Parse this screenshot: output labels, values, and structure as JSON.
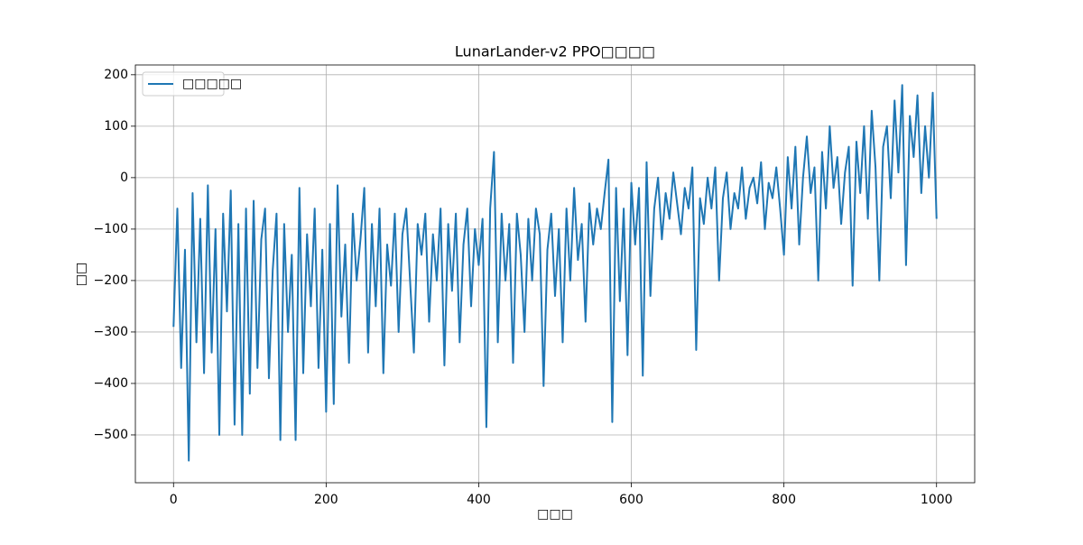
{
  "chart_data": {
    "type": "line",
    "title": "LunarLander-v2 PPO□□□□",
    "xlabel": "□□□",
    "ylabel": "□□",
    "x": [
      0,
      5,
      10,
      15,
      20,
      25,
      30,
      35,
      40,
      45,
      50,
      55,
      60,
      65,
      70,
      75,
      80,
      85,
      90,
      95,
      100,
      105,
      110,
      115,
      120,
      125,
      130,
      135,
      140,
      145,
      150,
      155,
      160,
      165,
      170,
      175,
      180,
      185,
      190,
      195,
      200,
      205,
      210,
      215,
      220,
      225,
      230,
      235,
      240,
      245,
      250,
      255,
      260,
      265,
      270,
      275,
      280,
      285,
      290,
      295,
      300,
      305,
      310,
      315,
      320,
      325,
      330,
      335,
      340,
      345,
      350,
      355,
      360,
      365,
      370,
      375,
      380,
      385,
      390,
      395,
      400,
      405,
      410,
      415,
      420,
      425,
      430,
      435,
      440,
      445,
      450,
      455,
      460,
      465,
      470,
      475,
      480,
      485,
      490,
      495,
      500,
      505,
      510,
      515,
      520,
      525,
      530,
      535,
      540,
      545,
      550,
      555,
      560,
      565,
      570,
      575,
      580,
      585,
      590,
      595,
      600,
      605,
      610,
      615,
      620,
      625,
      630,
      635,
      640,
      645,
      650,
      655,
      660,
      665,
      670,
      675,
      680,
      685,
      690,
      695,
      700,
      705,
      710,
      715,
      720,
      725,
      730,
      735,
      740,
      745,
      750,
      755,
      760,
      765,
      770,
      775,
      780,
      785,
      790,
      795,
      800,
      805,
      810,
      815,
      820,
      825,
      830,
      835,
      840,
      845,
      850,
      855,
      860,
      865,
      870,
      875,
      880,
      885,
      890,
      895,
      900,
      905,
      910,
      915,
      920,
      925,
      930,
      935,
      940,
      945,
      950,
      955,
      960,
      965,
      970,
      975,
      980,
      985,
      990,
      995,
      1000
    ],
    "series": [
      {
        "name": "□□□□□",
        "color": "#1f77b4",
        "values": [
          -290,
          -60,
          -370,
          -140,
          -550,
          -30,
          -320,
          -80,
          -380,
          -15,
          -340,
          -100,
          -500,
          -70,
          -260,
          -25,
          -480,
          -90,
          -500,
          -60,
          -420,
          -45,
          -370,
          -120,
          -60,
          -390,
          -180,
          -70,
          -510,
          -90,
          -300,
          -150,
          -510,
          -20,
          -380,
          -110,
          -250,
          -60,
          -370,
          -140,
          -455,
          -90,
          -440,
          -15,
          -270,
          -130,
          -360,
          -70,
          -200,
          -120,
          -20,
          -340,
          -90,
          -250,
          -60,
          -380,
          -130,
          -210,
          -70,
          -300,
          -110,
          -60,
          -200,
          -340,
          -90,
          -150,
          -70,
          -280,
          -110,
          -200,
          -60,
          -365,
          -90,
          -220,
          -70,
          -320,
          -130,
          -60,
          -250,
          -100,
          -170,
          -80,
          -485,
          -60,
          50,
          -320,
          -70,
          -200,
          -90,
          -360,
          -70,
          -150,
          -300,
          -80,
          -200,
          -60,
          -110,
          -405,
          -140,
          -70,
          -230,
          -100,
          -320,
          -60,
          -200,
          -20,
          -160,
          -90,
          -280,
          -50,
          -130,
          -60,
          -100,
          -30,
          35,
          -475,
          -20,
          -240,
          -60,
          -345,
          -10,
          -130,
          -20,
          -385,
          30,
          -230,
          -60,
          0,
          -120,
          -30,
          -80,
          10,
          -50,
          -110,
          -20,
          -60,
          20,
          -335,
          -40,
          -90,
          0,
          -60,
          20,
          -200,
          -40,
          10,
          -100,
          -30,
          -60,
          20,
          -80,
          -20,
          0,
          -50,
          30,
          -100,
          -10,
          -40,
          20,
          -60,
          -150,
          40,
          -60,
          60,
          -130,
          0,
          80,
          -30,
          20,
          -200,
          50,
          -60,
          100,
          -20,
          40,
          -90,
          10,
          60,
          -210,
          70,
          -30,
          100,
          -80,
          130,
          20,
          -200,
          60,
          100,
          -40,
          150,
          10,
          180,
          -170,
          120,
          40,
          160,
          -30,
          100,
          0,
          165,
          -80
        ]
      }
    ],
    "xlim": [
      -50,
      1050
    ],
    "ylim": [
      -593,
      219
    ],
    "xticks": [
      0,
      200,
      400,
      600,
      800,
      1000
    ],
    "yticks": [
      {
        "value": -500,
        "label": "−500"
      },
      {
        "value": -400,
        "label": "−400"
      },
      {
        "value": -300,
        "label": "−300"
      },
      {
        "value": -200,
        "label": "−200"
      },
      {
        "value": -100,
        "label": "−100"
      },
      0,
      100,
      200
    ],
    "grid": true,
    "legend": "upper left"
  }
}
